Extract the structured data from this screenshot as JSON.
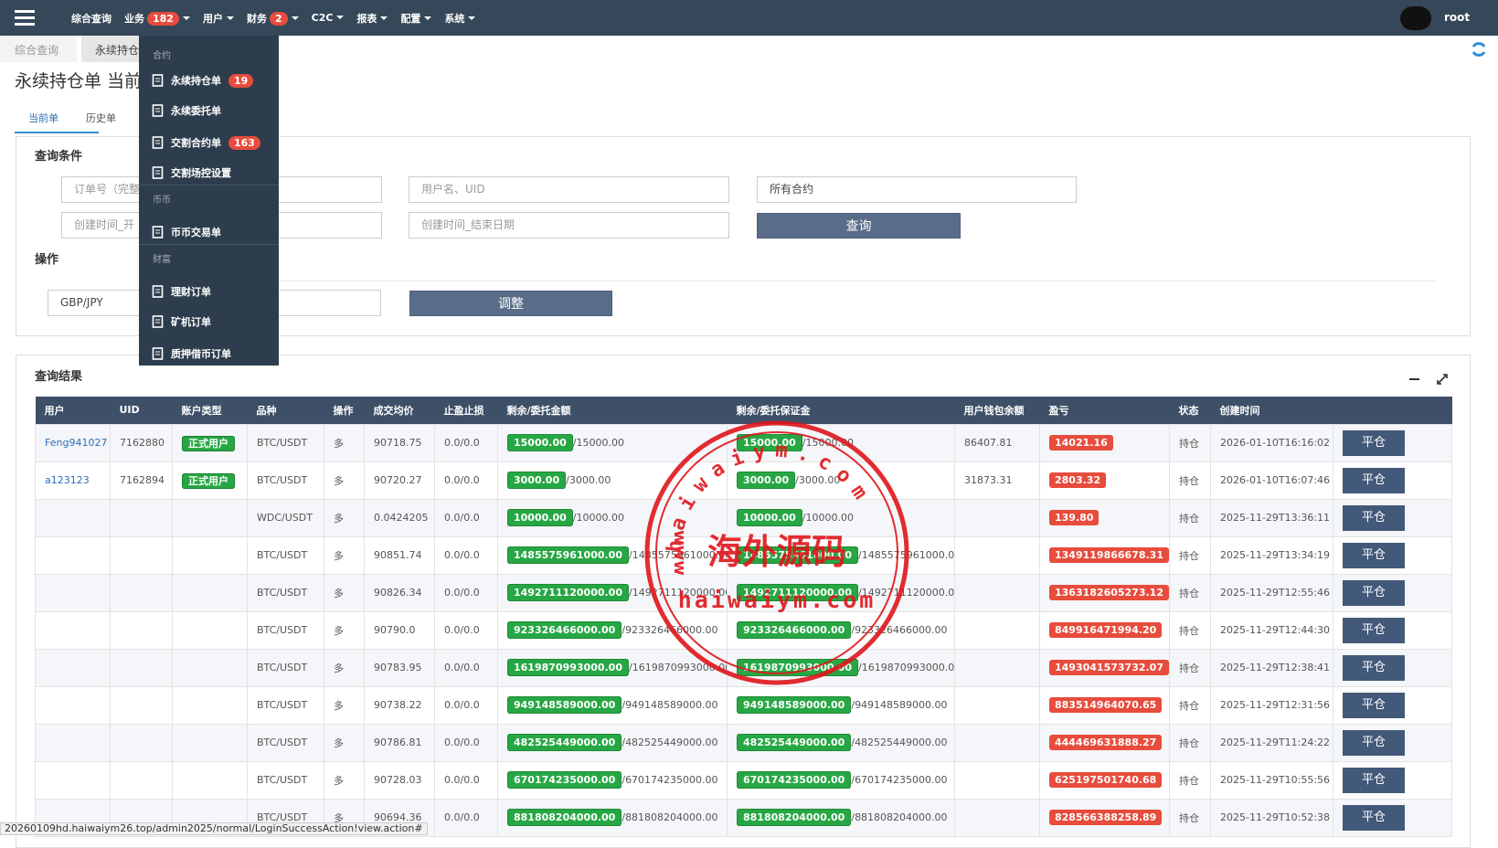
{
  "nav": {
    "items": [
      {
        "label": "综合查询"
      },
      {
        "label": "业务",
        "badge": "182"
      },
      {
        "label": "用户"
      },
      {
        "label": "财务",
        "badge": "2"
      },
      {
        "label": "C2C"
      },
      {
        "label": "报表"
      },
      {
        "label": "配置"
      },
      {
        "label": "系统"
      }
    ],
    "user": "root"
  },
  "breadcrumb": [
    "综合查询",
    "永续持仓"
  ],
  "page_title": "永续持仓单 当前",
  "subtabs": [
    "当前单",
    "历史单"
  ],
  "query": {
    "title": "查询条件",
    "order_placeholder": "订单号（完整",
    "user_placeholder": "用户名、UID",
    "contract_select": "所有合约",
    "start_placeholder": "创建时间_开",
    "end_placeholder": "创建时间_结束日期",
    "button": "查询"
  },
  "operation": {
    "title": "操作",
    "select": "GBP/JPY",
    "button": "调整"
  },
  "dropdown": {
    "groups": [
      {
        "title": "合约",
        "items": [
          {
            "label": "永续持仓单",
            "badge": "19"
          },
          {
            "label": "永续委托单"
          },
          {
            "label": "交割合约单",
            "badge": "163"
          },
          {
            "label": "交割场控设置"
          }
        ]
      },
      {
        "title": "币币",
        "items": [
          {
            "label": "币币交易单"
          }
        ]
      },
      {
        "title": "财富",
        "items": [
          {
            "label": "理财订单"
          },
          {
            "label": "矿机订单"
          },
          {
            "label": "质押借币订单"
          }
        ]
      }
    ]
  },
  "results": {
    "title": "查询结果",
    "separator": "/",
    "headers": [
      "用户",
      "UID",
      "账户类型",
      "品种",
      "操作",
      "成交均价",
      "止盈止损",
      "剩余/委托金额",
      "剩余/委托保证金",
      "用户钱包余额",
      "盈亏",
      "状态",
      "创建时间"
    ],
    "rows": [
      [
        "Feng941027",
        "7162880",
        "正式用户",
        "BTC/USDT",
        "多",
        "90718.75",
        "0.0/0.0",
        "15000.00",
        "15000.00",
        "15000.00",
        "15000.00",
        "86407.81",
        "14021.16",
        "持仓",
        "2026-01-10T16:16:02",
        "平仓"
      ],
      [
        "a123123",
        "7162894",
        "正式用户",
        "BTC/USDT",
        "多",
        "90720.27",
        "0.0/0.0",
        "3000.00",
        "3000.00",
        "3000.00",
        "3000.00",
        "31873.31",
        "2803.32",
        "持仓",
        "2026-01-10T16:07:46",
        "平仓"
      ],
      [
        null,
        null,
        null,
        "WDC/USDT",
        "多",
        "0.0424205",
        "0.0/0.0",
        "10000.00",
        "10000.00",
        "10000.00",
        "10000.00",
        null,
        "139.80",
        "持仓",
        "2025-11-29T13:36:11",
        "平仓"
      ],
      [
        null,
        null,
        null,
        "BTC/USDT",
        "多",
        "90851.74",
        "0.0/0.0",
        "1485575961000.00",
        "1485575961000.00",
        "1485575961000.00",
        "1485575961000.00",
        null,
        "1349119866678.31",
        "持仓",
        "2025-11-29T13:34:19",
        "平仓"
      ],
      [
        null,
        null,
        null,
        "BTC/USDT",
        "多",
        "90826.34",
        "0.0/0.0",
        "1492711120000.00",
        "1492711120000.00",
        "1492711120000.00",
        "1492711120000.00",
        null,
        "1363182605273.12",
        "持仓",
        "2025-11-29T12:55:46",
        "平仓"
      ],
      [
        null,
        null,
        null,
        "BTC/USDT",
        "多",
        "90790.0",
        "0.0/0.0",
        "923326466000.00",
        "923326466000.00",
        "923326466000.00",
        "923326466000.00",
        null,
        "849916471994.20",
        "持仓",
        "2025-11-29T12:44:30",
        "平仓"
      ],
      [
        null,
        null,
        null,
        "BTC/USDT",
        "多",
        "90783.95",
        "0.0/0.0",
        "1619870993000.00",
        "1619870993000.00",
        "1619870993000.00",
        "1619870993000.00",
        null,
        "1493041573732.07",
        "持仓",
        "2025-11-29T12:38:41",
        "平仓"
      ],
      [
        null,
        null,
        null,
        "BTC/USDT",
        "多",
        "90738.22",
        "0.0/0.0",
        "949148589000.00",
        "949148589000.00",
        "949148589000.00",
        "949148589000.00",
        null,
        "883514964070.65",
        "持仓",
        "2025-11-29T12:31:56",
        "平仓"
      ],
      [
        null,
        null,
        null,
        "BTC/USDT",
        "多",
        "90786.81",
        "0.0/0.0",
        "482525449000.00",
        "482525449000.00",
        "482525449000.00",
        "482525449000.00",
        null,
        "444469631888.27",
        "持仓",
        "2025-11-29T11:24:22",
        "平仓"
      ],
      [
        null,
        null,
        null,
        "BTC/USDT",
        "多",
        "90728.03",
        "0.0/0.0",
        "670174235000.00",
        "670174235000.00",
        "670174235000.00",
        "670174235000.00",
        null,
        "625197501740.68",
        "持仓",
        "2025-11-29T10:55:56",
        "平仓"
      ],
      [
        null,
        null,
        null,
        "BTC/USDT",
        "多",
        "90694.36",
        "0.0/0.0",
        "881808204000.00",
        "881808204000.00",
        "881808204000.00",
        "881808204000.00",
        null,
        "828566388258.89",
        "持仓",
        "2025-11-29T10:52:38",
        "平仓"
      ]
    ]
  },
  "watermark": {
    "arc": "haiwaiym.com",
    "side": "www",
    "center": "海外源码",
    "bottom": "haiwaiym.com"
  },
  "status_bar": "20260109hd.haiwaiym26.top/admin2025/normal/LoginSuccessAction!view.action#"
}
